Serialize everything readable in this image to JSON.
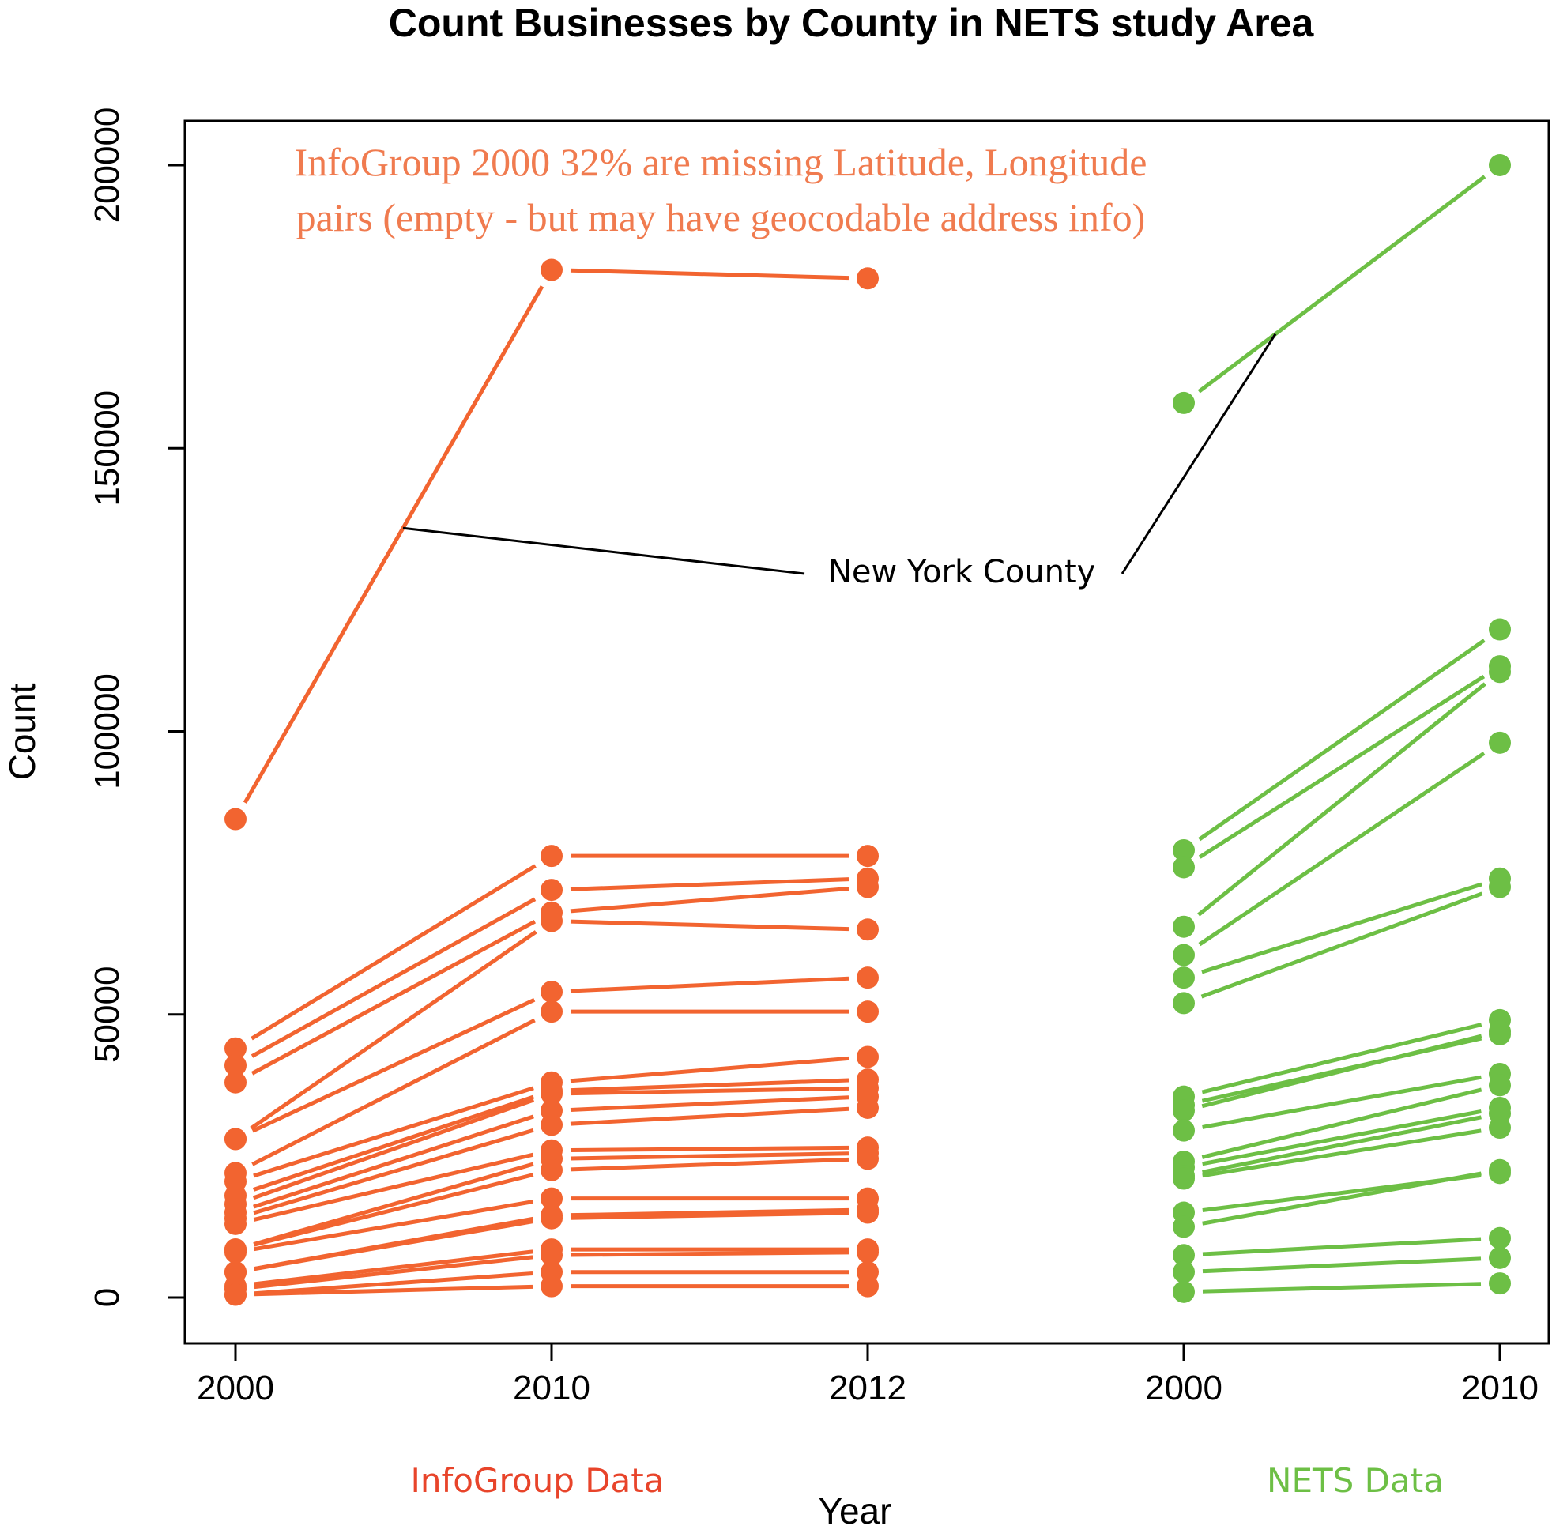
{
  "chart_data": {
    "type": "line",
    "title": "Count Businesses by County in NETS study Area",
    "xlabel": "Year",
    "ylabel": "Count",
    "ylim": [
      0,
      200000
    ],
    "y_ticks": [
      0,
      50000,
      100000,
      150000,
      200000
    ],
    "grid": false,
    "groups": [
      {
        "name": "InfoGroup Data",
        "color": "#f26430",
        "label_color": "#e8442a",
        "x": [
          "2000",
          "2010",
          "2012"
        ],
        "series": [
          {
            "values": [
              84500,
              181500,
              180000
            ]
          },
          {
            "values": [
              44000,
              78000,
              78000
            ]
          },
          {
            "values": [
              41000,
              72000,
              74000
            ]
          },
          {
            "values": [
              38000,
              68000,
              72500
            ]
          },
          {
            "values": [
              28000,
              66500,
              65000
            ]
          },
          {
            "values": [
              28000,
              54000,
              56500
            ]
          },
          {
            "values": [
              22000,
              50500,
              50500
            ]
          },
          {
            "values": [
              20500,
              38000,
              42500
            ]
          },
          {
            "values": [
              18000,
              36500,
              38500
            ]
          },
          {
            "values": [
              16500,
              36000,
              37000
            ]
          },
          {
            "values": [
              15000,
              33000,
              35500
            ]
          },
          {
            "values": [
              14000,
              30500,
              33500
            ]
          },
          {
            "values": [
              13000,
              26000,
              26500
            ]
          },
          {
            "values": [
              8500,
              24500,
              25500
            ]
          },
          {
            "values": [
              8500,
              22500,
              24500
            ]
          },
          {
            "values": [
              8000,
              17500,
              17500
            ]
          },
          {
            "values": [
              4500,
              14500,
              15500
            ]
          },
          {
            "values": [
              4500,
              14000,
              15000
            ]
          },
          {
            "values": [
              2000,
              8500,
              8500
            ]
          },
          {
            "values": [
              1500,
              7500,
              8000
            ]
          },
          {
            "values": [
              500,
              4500,
              4500
            ]
          },
          {
            "values": [
              500,
              2000,
              2000
            ]
          }
        ]
      },
      {
        "name": "NETS Data",
        "color": "#6dbf45",
        "label_color": "#6dbf45",
        "x": [
          "2000",
          "2010"
        ],
        "series": [
          {
            "values": [
              158000,
              200000
            ]
          },
          {
            "values": [
              79000,
              118000
            ]
          },
          {
            "values": [
              76000,
              111500
            ]
          },
          {
            "values": [
              65500,
              110500
            ]
          },
          {
            "values": [
              60500,
              98000
            ]
          },
          {
            "values": [
              56500,
              74000
            ]
          },
          {
            "values": [
              52000,
              72500
            ]
          },
          {
            "values": [
              35500,
              49000
            ]
          },
          {
            "values": [
              34000,
              46500
            ]
          },
          {
            "values": [
              33000,
              47000
            ]
          },
          {
            "values": [
              29500,
              39500
            ]
          },
          {
            "values": [
              24000,
              37500
            ]
          },
          {
            "values": [
              23000,
              33500
            ]
          },
          {
            "values": [
              21500,
              32500
            ]
          },
          {
            "values": [
              21000,
              30000
            ]
          },
          {
            "values": [
              15000,
              22000
            ]
          },
          {
            "values": [
              12500,
              22500
            ]
          },
          {
            "values": [
              7500,
              10500
            ]
          },
          {
            "values": [
              4500,
              7000
            ]
          },
          {
            "values": [
              1000,
              2500
            ]
          }
        ]
      }
    ],
    "annotations": {
      "note_lines": [
        "InfoGroup 2000 32% are missing Latitude, Longitude",
        "pairs (empty - but may have geocodable address info)"
      ],
      "note_color": "#f07b4f",
      "callout_label": "New York County"
    }
  }
}
